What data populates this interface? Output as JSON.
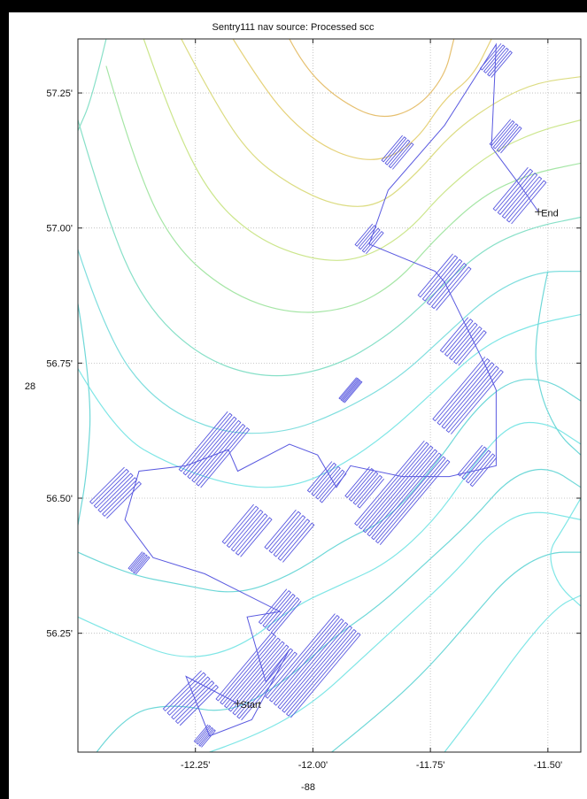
{
  "chart_data": {
    "type": "line",
    "title": "Sentry111 nav source: Processed scc",
    "xlabel": "-88",
    "ylabel": "28",
    "xlim": [
      -12.5,
      -11.43
    ],
    "ylim": [
      56.03,
      57.35
    ],
    "grid": true,
    "x_ticks": [
      -12.25,
      -12.0,
      -11.75,
      -11.5
    ],
    "x_tick_labels": [
      "-12.25'",
      "-12.00'",
      "-11.75'",
      "-11.50'"
    ],
    "y_ticks": [
      56.25,
      56.5,
      56.75,
      57.0,
      57.25
    ],
    "y_tick_labels": [
      "56.25'",
      "56.50'",
      "56.75'",
      "57.00'",
      "57.25'"
    ],
    "colors": {
      "track": "#5a5ae0",
      "contour_palette": [
        "#7fe6e6",
        "#6fd8d8",
        "#88e0c8",
        "#a6e6a6",
        "#cce68c",
        "#e6d27a",
        "#e6c070"
      ],
      "grid": "#b8b8b8",
      "axes_background": "#ffffff",
      "page_background": "#000000"
    },
    "markers": [
      {
        "label": "Start",
        "x": -12.16,
        "y": 56.12
      },
      {
        "label": "End",
        "x": -11.52,
        "y": 57.03
      }
    ],
    "route": [
      [
        -12.16,
        56.12
      ],
      [
        -12.27,
        56.17
      ],
      [
        -12.22,
        56.06
      ],
      [
        -12.13,
        56.09
      ],
      [
        -12.05,
        56.22
      ],
      [
        -12.1,
        56.16
      ],
      [
        -12.14,
        56.28
      ],
      [
        -12.07,
        56.29
      ],
      [
        -12.23,
        56.36
      ],
      [
        -12.34,
        56.39
      ],
      [
        -12.4,
        56.46
      ],
      [
        -12.37,
        56.55
      ],
      [
        -12.27,
        56.56
      ],
      [
        -12.18,
        56.59
      ],
      [
        -12.16,
        56.55
      ],
      [
        -12.05,
        56.6
      ],
      [
        -11.99,
        56.58
      ],
      [
        -11.95,
        56.52
      ],
      [
        -11.92,
        56.56
      ],
      [
        -11.81,
        56.54
      ],
      [
        -11.71,
        56.54
      ],
      [
        -11.61,
        56.56
      ],
      [
        -11.61,
        56.7
      ],
      [
        -11.63,
        56.74
      ],
      [
        -11.72,
        56.9
      ],
      [
        -11.74,
        56.92
      ],
      [
        -11.88,
        56.97
      ],
      [
        -11.84,
        57.07
      ],
      [
        -11.72,
        57.19
      ],
      [
        -11.61,
        57.34
      ],
      [
        -11.62,
        57.15
      ],
      [
        -11.56,
        57.08
      ],
      [
        -11.52,
        57.03
      ]
    ],
    "survey_blocks": [
      {
        "cx": -12.26,
        "cy": 56.13,
        "w": 0.05,
        "h": 0.1,
        "angle": 45
      },
      {
        "cx": -12.12,
        "cy": 56.17,
        "w": 0.07,
        "h": 0.16,
        "angle": 40
      },
      {
        "cx": -12.0,
        "cy": 56.19,
        "w": 0.07,
        "h": 0.2,
        "angle": 40
      },
      {
        "cx": -12.07,
        "cy": 56.29,
        "w": 0.04,
        "h": 0.08,
        "angle": 40
      },
      {
        "cx": -12.23,
        "cy": 56.06,
        "w": 0.02,
        "h": 0.04,
        "angle": 40
      },
      {
        "cx": -12.37,
        "cy": 56.38,
        "w": 0.02,
        "h": 0.04,
        "angle": 40
      },
      {
        "cx": -12.42,
        "cy": 56.51,
        "w": 0.05,
        "h": 0.09,
        "angle": 45
      },
      {
        "cx": -12.21,
        "cy": 56.59,
        "w": 0.06,
        "h": 0.14,
        "angle": 40
      },
      {
        "cx": -12.14,
        "cy": 56.44,
        "w": 0.05,
        "h": 0.09,
        "angle": 40
      },
      {
        "cx": -12.05,
        "cy": 56.43,
        "w": 0.05,
        "h": 0.09,
        "angle": 40
      },
      {
        "cx": -11.97,
        "cy": 56.53,
        "w": 0.04,
        "h": 0.07,
        "angle": 40
      },
      {
        "cx": -11.92,
        "cy": 56.7,
        "w": 0.015,
        "h": 0.05,
        "angle": 40
      },
      {
        "cx": -11.89,
        "cy": 56.52,
        "w": 0.04,
        "h": 0.07,
        "angle": 40
      },
      {
        "cx": -11.81,
        "cy": 56.51,
        "w": 0.07,
        "h": 0.2,
        "angle": 40
      },
      {
        "cx": -11.65,
        "cy": 56.56,
        "w": 0.04,
        "h": 0.07,
        "angle": 40
      },
      {
        "cx": -11.67,
        "cy": 56.69,
        "w": 0.05,
        "h": 0.15,
        "angle": 40
      },
      {
        "cx": -11.68,
        "cy": 56.79,
        "w": 0.05,
        "h": 0.08,
        "angle": 40
      },
      {
        "cx": -11.72,
        "cy": 56.9,
        "w": 0.05,
        "h": 0.1,
        "angle": 40
      },
      {
        "cx": -11.88,
        "cy": 56.98,
        "w": 0.03,
        "h": 0.05,
        "angle": 40
      },
      {
        "cx": -11.82,
        "cy": 57.14,
        "w": 0.03,
        "h": 0.06,
        "angle": 40
      },
      {
        "cx": -11.61,
        "cy": 57.31,
        "w": 0.03,
        "h": 0.06,
        "angle": 40
      },
      {
        "cx": -11.59,
        "cy": 57.17,
        "w": 0.03,
        "h": 0.06,
        "angle": 40
      },
      {
        "cx": -11.56,
        "cy": 57.06,
        "w": 0.05,
        "h": 0.1,
        "angle": 40
      }
    ],
    "contours": [
      {
        "color": "#e6c070",
        "points": [
          [
            -12.05,
            57.35
          ],
          [
            -12.02,
            57.3
          ],
          [
            -11.95,
            57.24
          ],
          [
            -11.86,
            57.2
          ],
          [
            -11.78,
            57.22
          ],
          [
            -11.72,
            57.28
          ],
          [
            -11.7,
            57.35
          ]
        ]
      },
      {
        "color": "#e6d27a",
        "points": [
          [
            -12.17,
            57.35
          ],
          [
            -12.12,
            57.28
          ],
          [
            -12.05,
            57.2
          ],
          [
            -11.96,
            57.14
          ],
          [
            -11.86,
            57.12
          ],
          [
            -11.78,
            57.16
          ],
          [
            -11.72,
            57.24
          ],
          [
            -11.66,
            57.28
          ],
          [
            -11.62,
            57.35
          ]
        ]
      },
      {
        "color": "#dcdc82",
        "points": [
          [
            -12.28,
            57.35
          ],
          [
            -12.22,
            57.25
          ],
          [
            -12.14,
            57.14
          ],
          [
            -12.05,
            57.08
          ],
          [
            -11.95,
            57.04
          ],
          [
            -11.86,
            57.04
          ],
          [
            -11.78,
            57.1
          ],
          [
            -11.7,
            57.18
          ],
          [
            -11.6,
            57.24
          ],
          [
            -11.52,
            57.27
          ],
          [
            -11.43,
            57.28
          ]
        ]
      },
      {
        "color": "#cce68c",
        "points": [
          [
            -12.36,
            57.35
          ],
          [
            -12.3,
            57.2
          ],
          [
            -12.22,
            57.06
          ],
          [
            -12.12,
            56.98
          ],
          [
            -12.0,
            56.94
          ],
          [
            -11.9,
            56.94
          ],
          [
            -11.8,
            56.99
          ],
          [
            -11.72,
            57.07
          ],
          [
            -11.62,
            57.14
          ],
          [
            -11.52,
            57.18
          ],
          [
            -11.43,
            57.2
          ]
        ]
      },
      {
        "color": "#a6e6a6",
        "points": [
          [
            -12.44,
            57.3
          ],
          [
            -12.38,
            57.12
          ],
          [
            -12.3,
            56.97
          ],
          [
            -12.18,
            56.88
          ],
          [
            -12.05,
            56.84
          ],
          [
            -11.92,
            56.85
          ],
          [
            -11.82,
            56.9
          ],
          [
            -11.74,
            56.98
          ],
          [
            -11.64,
            57.06
          ],
          [
            -11.54,
            57.1
          ],
          [
            -11.43,
            57.12
          ]
        ]
      },
      {
        "color": "#88e0c8",
        "points": [
          [
            -12.5,
            57.2
          ],
          [
            -12.44,
            57.02
          ],
          [
            -12.36,
            56.86
          ],
          [
            -12.24,
            56.76
          ],
          [
            -12.1,
            56.72
          ],
          [
            -11.96,
            56.74
          ],
          [
            -11.84,
            56.8
          ],
          [
            -11.74,
            56.88
          ],
          [
            -11.64,
            56.96
          ],
          [
            -11.54,
            57.0
          ],
          [
            -11.43,
            57.02
          ]
        ]
      },
      {
        "color": "#7fdede",
        "points": [
          [
            -12.5,
            56.96
          ],
          [
            -12.44,
            56.8
          ],
          [
            -12.34,
            56.68
          ],
          [
            -12.2,
            56.62
          ],
          [
            -12.06,
            56.62
          ],
          [
            -11.94,
            56.66
          ],
          [
            -11.82,
            56.72
          ],
          [
            -11.72,
            56.8
          ],
          [
            -11.62,
            56.88
          ],
          [
            -11.52,
            56.92
          ],
          [
            -11.43,
            56.92
          ]
        ]
      },
      {
        "color": "#7fe6e6",
        "points": [
          [
            -12.5,
            56.74
          ],
          [
            -12.42,
            56.62
          ],
          [
            -12.3,
            56.56
          ],
          [
            -12.16,
            56.52
          ],
          [
            -12.04,
            56.52
          ],
          [
            -11.94,
            56.56
          ],
          [
            -11.84,
            56.62
          ],
          [
            -11.74,
            56.7
          ],
          [
            -11.64,
            56.78
          ],
          [
            -11.54,
            56.82
          ],
          [
            -11.43,
            56.84
          ]
        ]
      },
      {
        "color": "#6fd8d8",
        "points": [
          [
            -12.5,
            56.4
          ],
          [
            -12.4,
            56.36
          ],
          [
            -12.28,
            56.34
          ],
          [
            -12.16,
            56.32
          ],
          [
            -12.04,
            56.36
          ],
          [
            -11.94,
            56.42
          ],
          [
            -11.84,
            56.46
          ],
          [
            -11.74,
            56.56
          ],
          [
            -11.66,
            56.66
          ],
          [
            -11.58,
            56.72
          ],
          [
            -11.5,
            56.72
          ],
          [
            -11.43,
            56.68
          ]
        ]
      },
      {
        "color": "#7fe6e6",
        "points": [
          [
            -12.5,
            56.28
          ],
          [
            -12.4,
            56.24
          ],
          [
            -12.28,
            56.2
          ],
          [
            -12.16,
            56.22
          ],
          [
            -12.04,
            56.3
          ],
          [
            -11.94,
            56.34
          ],
          [
            -11.84,
            56.38
          ],
          [
            -11.74,
            56.46
          ],
          [
            -11.66,
            56.56
          ],
          [
            -11.58,
            56.64
          ],
          [
            -11.5,
            56.64
          ],
          [
            -11.43,
            56.6
          ]
        ]
      },
      {
        "color": "#6fd8d8",
        "points": [
          [
            -12.46,
            56.03
          ],
          [
            -12.4,
            56.1
          ],
          [
            -12.3,
            56.12
          ],
          [
            -12.18,
            56.1
          ],
          [
            -12.06,
            56.16
          ],
          [
            -11.96,
            56.24
          ],
          [
            -11.86,
            56.3
          ],
          [
            -11.76,
            56.38
          ],
          [
            -11.66,
            56.46
          ],
          [
            -11.58,
            56.54
          ],
          [
            -11.5,
            56.56
          ],
          [
            -11.43,
            56.52
          ]
        ]
      },
      {
        "color": "#7fe6e6",
        "points": [
          [
            -12.22,
            56.03
          ],
          [
            -12.12,
            56.06
          ],
          [
            -12.0,
            56.12
          ],
          [
            -11.9,
            56.2
          ],
          [
            -11.8,
            56.28
          ],
          [
            -11.7,
            56.36
          ],
          [
            -11.62,
            56.44
          ],
          [
            -11.54,
            56.48
          ],
          [
            -11.43,
            56.46
          ]
        ]
      },
      {
        "color": "#6fd8d8",
        "points": [
          [
            -11.96,
            56.03
          ],
          [
            -11.86,
            56.1
          ],
          [
            -11.76,
            56.18
          ],
          [
            -11.66,
            56.28
          ],
          [
            -11.58,
            56.36
          ],
          [
            -11.5,
            56.4
          ],
          [
            -11.43,
            56.4
          ]
        ]
      },
      {
        "color": "#7fe6e6",
        "points": [
          [
            -11.72,
            56.03
          ],
          [
            -11.64,
            56.12
          ],
          [
            -11.56,
            56.22
          ],
          [
            -11.48,
            56.3
          ],
          [
            -11.43,
            56.32
          ]
        ]
      },
      {
        "color": "#6fd8d8",
        "points": [
          [
            -12.5,
            56.86
          ],
          [
            -12.47,
            56.7
          ],
          [
            -12.48,
            56.55
          ],
          [
            -12.5,
            56.45
          ]
        ]
      },
      {
        "color": "#88e0c8",
        "points": [
          [
            -12.44,
            57.35
          ],
          [
            -12.47,
            57.24
          ],
          [
            -12.5,
            57.18
          ]
        ]
      },
      {
        "color": "#7fe6e6",
        "points": [
          [
            -11.43,
            56.5
          ],
          [
            -11.47,
            56.44
          ],
          [
            -11.5,
            56.4
          ],
          [
            -11.48,
            56.34
          ],
          [
            -11.43,
            56.3
          ]
        ]
      },
      {
        "color": "#6fd8d8",
        "points": [
          [
            -11.5,
            56.92
          ],
          [
            -11.53,
            56.8
          ],
          [
            -11.52,
            56.7
          ],
          [
            -11.48,
            56.62
          ],
          [
            -11.43,
            56.58
          ]
        ]
      }
    ]
  }
}
